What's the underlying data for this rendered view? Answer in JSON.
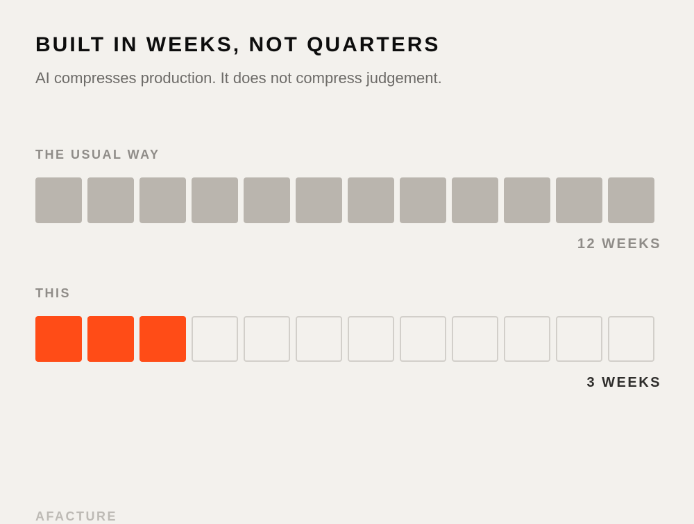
{
  "header": {
    "title": "BUILT IN WEEKS, NOT QUARTERS",
    "subtitle": "AI compresses production. It does not compress judgement."
  },
  "comparison": {
    "total_weeks_scale": 12,
    "usual": {
      "label": "THE USUAL WAY",
      "weeks": 12,
      "duration_text": "12 WEEKS"
    },
    "this": {
      "label": "THIS",
      "weeks": 3,
      "duration_text": "3 WEEKS"
    }
  },
  "colors": {
    "background": "#f3f1ed",
    "usual_fill": "#bab5ae",
    "accent": "#ff4c17",
    "empty_border": "#d2cfca"
  },
  "footer": {
    "section_label": "AFACTURE"
  }
}
